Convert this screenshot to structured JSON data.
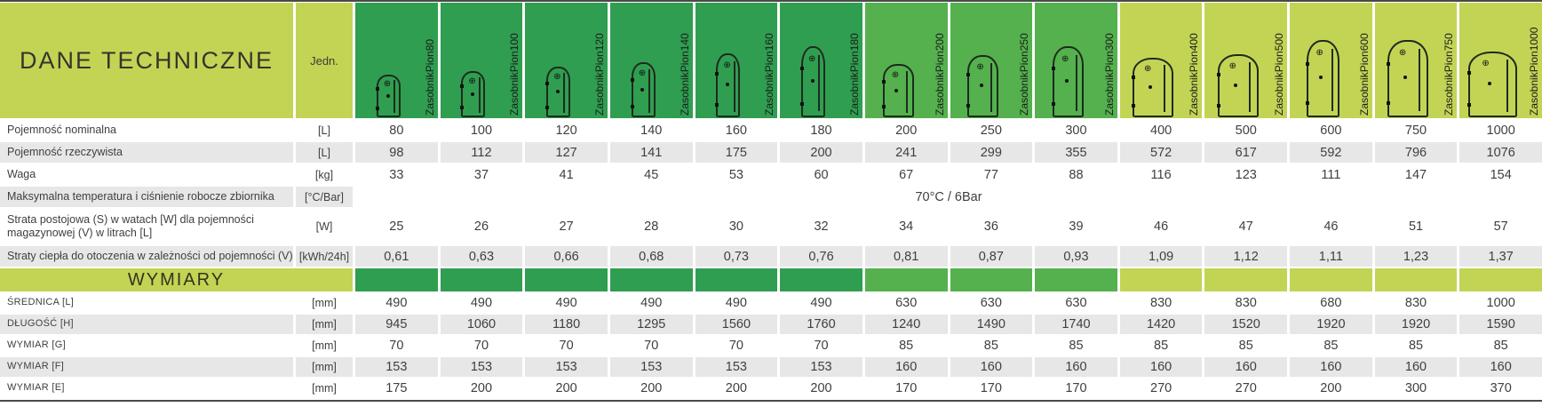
{
  "header": {
    "title": "DANE TECHNICZNE",
    "unit_label": "Jedn."
  },
  "colors": {
    "lime": "#c3d455",
    "green_dark": "#2f9e50",
    "green_medium": "#54b14e",
    "row_shade": "#e7e7e7"
  },
  "columns": [
    {
      "name": "ZasobnikPion80",
      "group": "dark"
    },
    {
      "name": "ZasobnikPion100",
      "group": "dark"
    },
    {
      "name": "ZasobnikPion120",
      "group": "dark"
    },
    {
      "name": "ZasobnikPion140",
      "group": "dark"
    },
    {
      "name": "ZasobnikPion160",
      "group": "dark"
    },
    {
      "name": "ZasobnikPion180",
      "group": "dark"
    },
    {
      "name": "ZasobnikPion200",
      "group": "med"
    },
    {
      "name": "ZasobnikPion250",
      "group": "med"
    },
    {
      "name": "ZasobnikPion300",
      "group": "med"
    },
    {
      "name": "ZasobnikPion400",
      "group": "lime"
    },
    {
      "name": "ZasobnikPion500",
      "group": "lime"
    },
    {
      "name": "ZasobnikPion600",
      "group": "lime"
    },
    {
      "name": "ZasobnikPion750",
      "group": "lime"
    },
    {
      "name": "ZasobnikPion1000",
      "group": "lime"
    }
  ],
  "section_band": {
    "label": "WYMIARY",
    "after_row": 5
  },
  "rows": [
    {
      "label": "Pojemność nominalna",
      "unit": "[L]",
      "values": [
        "80",
        "100",
        "120",
        "140",
        "160",
        "180",
        "200",
        "250",
        "300",
        "400",
        "500",
        "600",
        "750",
        "1000"
      ]
    },
    {
      "label": "Pojemność rzeczywista",
      "unit": "[L]",
      "values": [
        "98",
        "112",
        "127",
        "141",
        "175",
        "200",
        "241",
        "299",
        "355",
        "572",
        "617",
        "592",
        "796",
        "1076"
      ]
    },
    {
      "label": "Waga",
      "unit": "[kg]",
      "values": [
        "33",
        "37",
        "41",
        "45",
        "53",
        "60",
        "67",
        "77",
        "88",
        "116",
        "123",
        "111",
        "147",
        "154"
      ]
    },
    {
      "label": "Maksymalna temperatura i ciśnienie robocze zbiornika",
      "unit": "[°C/Bar]",
      "span_value": "70°C / 6Bar"
    },
    {
      "label": "Strata postojowa (S) w watach [W] dla pojemności magazynowej (V) w litrach [L]",
      "unit": "[W]",
      "values": [
        "25",
        "26",
        "27",
        "28",
        "30",
        "32",
        "34",
        "36",
        "39",
        "46",
        "47",
        "46",
        "51",
        "57"
      ]
    },
    {
      "label": "Straty ciepła do otoczenia w zależności od pojemności (V)",
      "unit": "[kWh/24h]",
      "values": [
        "0,61",
        "0,63",
        "0,66",
        "0,68",
        "0,73",
        "0,76",
        "0,81",
        "0,87",
        "0,93",
        "1,09",
        "1,12",
        "1,11",
        "1,23",
        "1,37"
      ]
    },
    {
      "label": "ŚREDNICA [L]",
      "unit": "[mm]",
      "values": [
        "490",
        "490",
        "490",
        "490",
        "490",
        "490",
        "630",
        "630",
        "630",
        "830",
        "830",
        "680",
        "830",
        "1000"
      ]
    },
    {
      "label": "DŁUGOŚĆ [H]",
      "unit": "[mm]",
      "values": [
        "945",
        "1060",
        "1180",
        "1295",
        "1560",
        "1760",
        "1240",
        "1490",
        "1740",
        "1420",
        "1520",
        "1920",
        "1920",
        "1590"
      ]
    },
    {
      "label": "WYMIAR [G]",
      "unit": "[mm]",
      "values": [
        "70",
        "70",
        "70",
        "70",
        "70",
        "70",
        "85",
        "85",
        "85",
        "85",
        "85",
        "85",
        "85",
        "85"
      ]
    },
    {
      "label": "WYMIAR [F]",
      "unit": "[mm]",
      "values": [
        "153",
        "153",
        "153",
        "153",
        "153",
        "153",
        "160",
        "160",
        "160",
        "160",
        "160",
        "160",
        "160",
        "160"
      ]
    },
    {
      "label": "WYMIAR [E]",
      "unit": "[mm]",
      "values": [
        "175",
        "200",
        "200",
        "200",
        "200",
        "200",
        "170",
        "170",
        "170",
        "270",
        "270",
        "200",
        "300",
        "370"
      ]
    }
  ],
  "icons": {
    "tank_valve_glyph": "⊕"
  }
}
